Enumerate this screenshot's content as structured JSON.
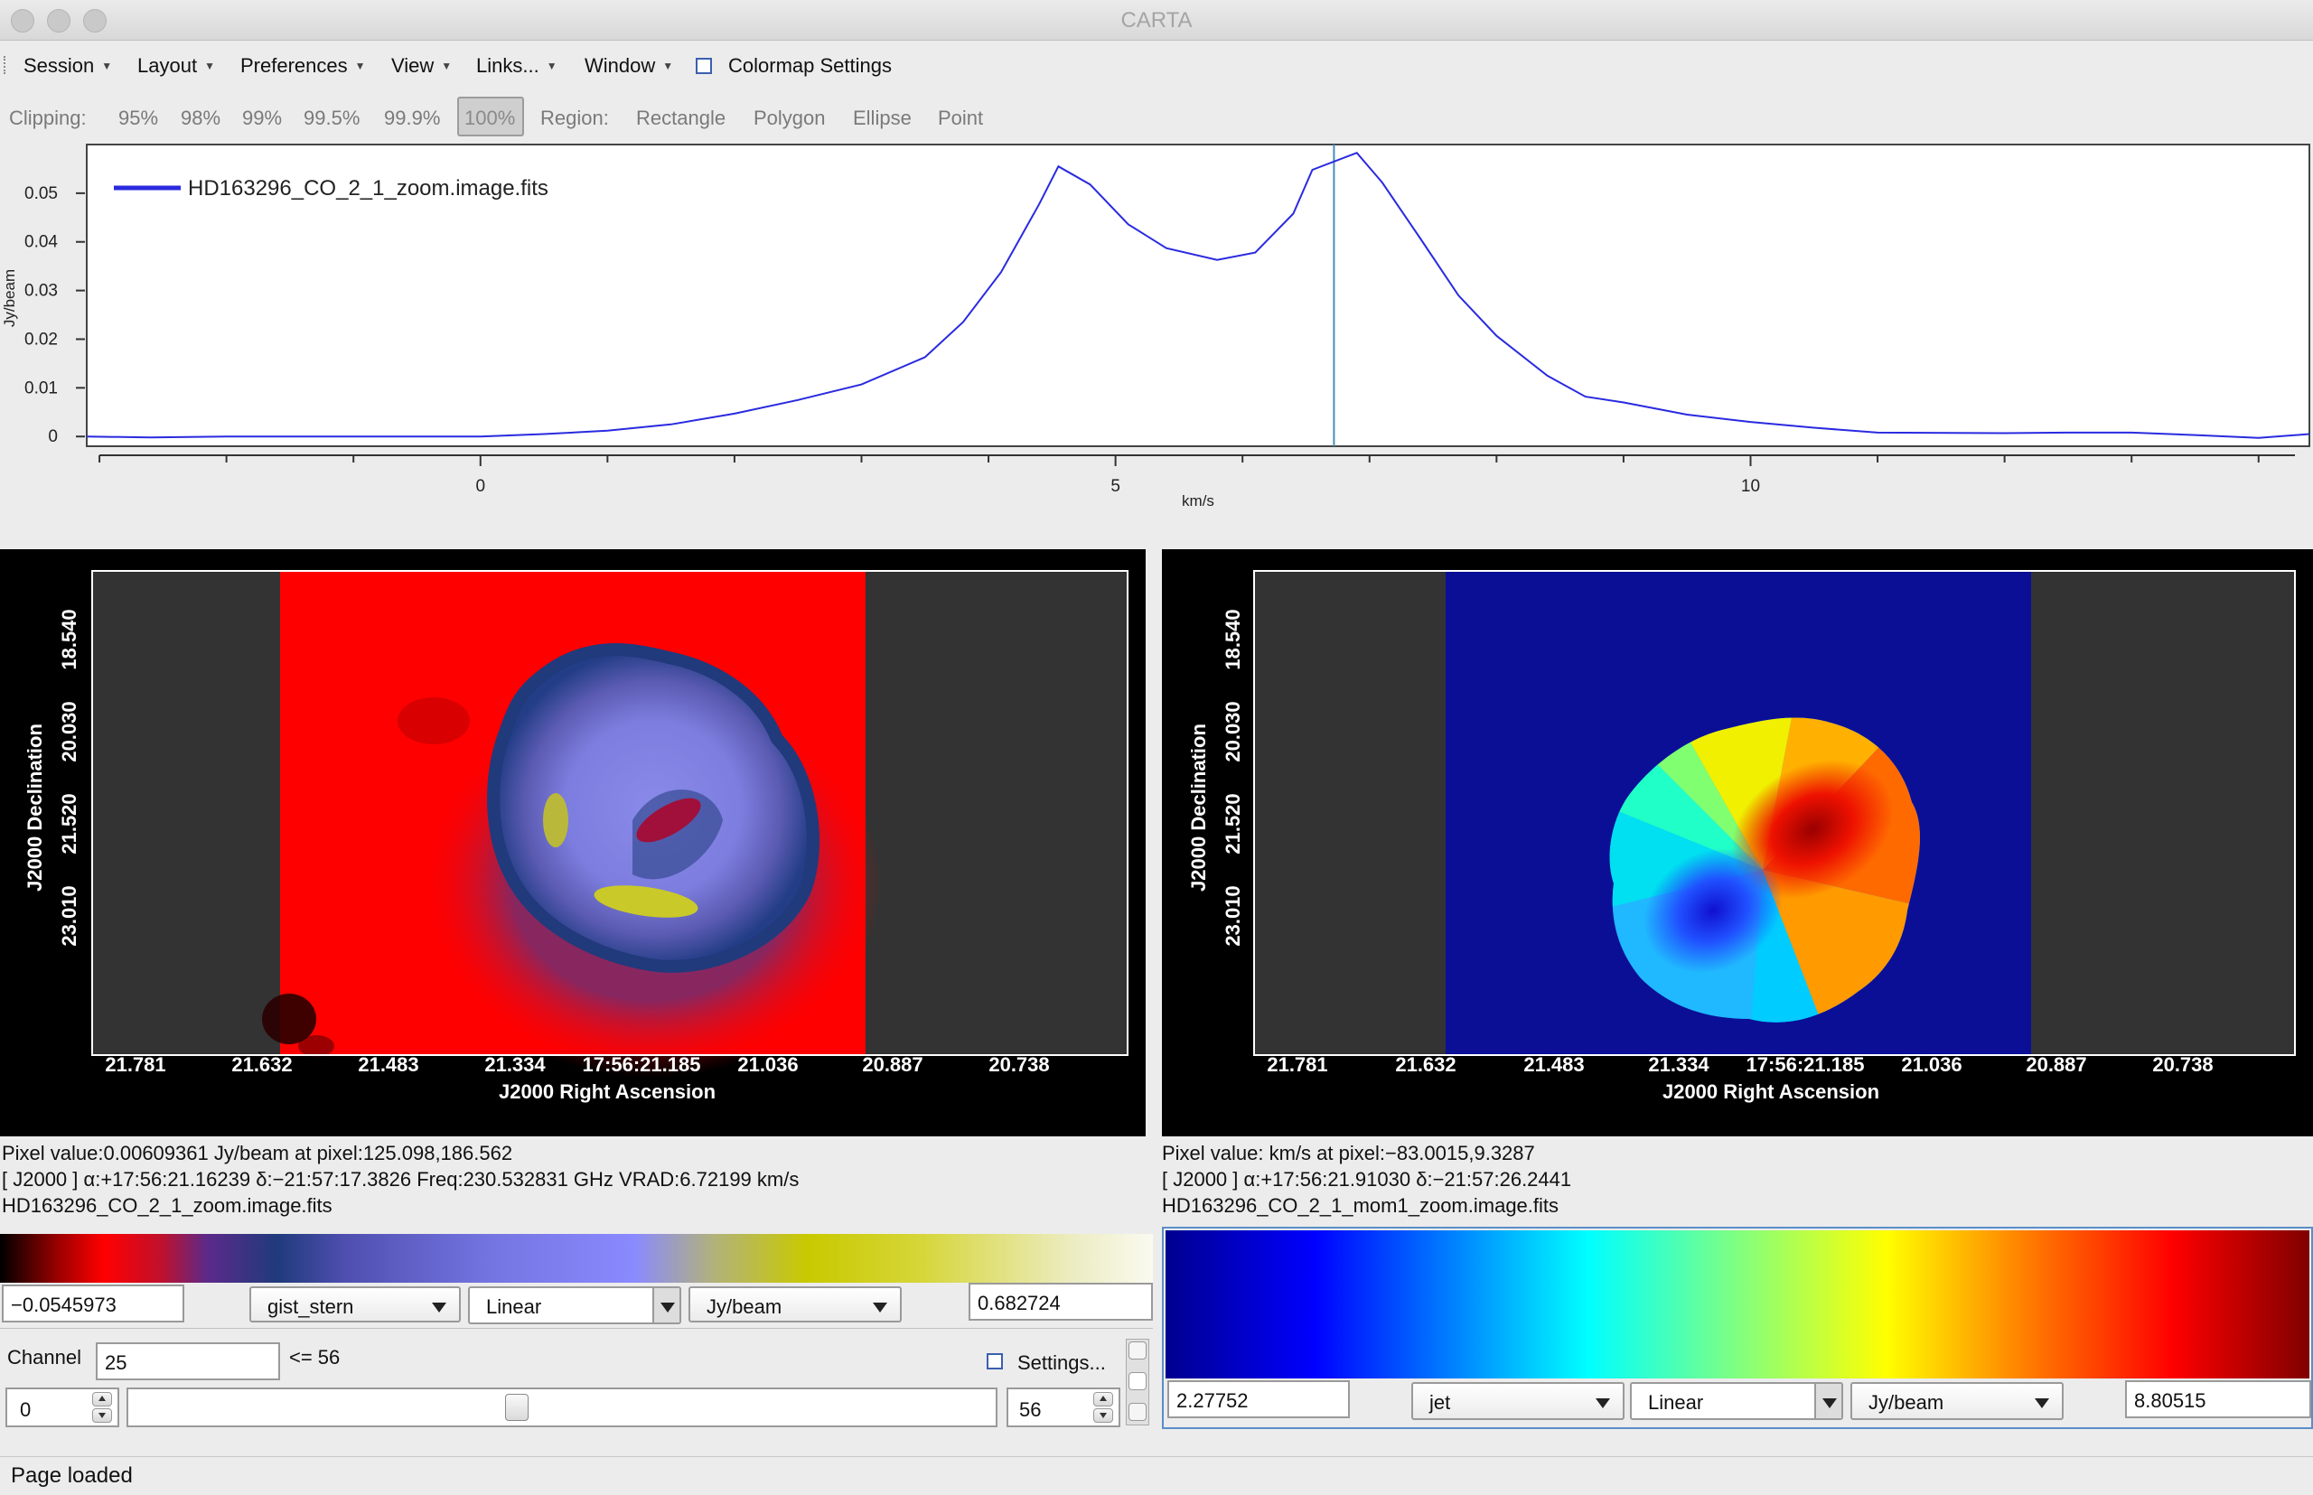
{
  "window": {
    "title": "CARTA"
  },
  "menu": {
    "items": [
      {
        "label": "Session"
      },
      {
        "label": "Layout"
      },
      {
        "label": "Preferences"
      },
      {
        "label": "View"
      },
      {
        "label": "Links..."
      },
      {
        "label": "Window"
      }
    ],
    "colormap_settings_label": "Colormap Settings"
  },
  "toolbar": {
    "clipping_label": "Clipping:",
    "clip_options": [
      "95%",
      "98%",
      "99%",
      "99.5%",
      "99.9%",
      "100%"
    ],
    "clip_selected": "100%",
    "region_label": "Region:",
    "region_options": [
      "Rectangle",
      "Polygon",
      "Ellipse",
      "Point"
    ]
  },
  "chart_data": {
    "type": "line",
    "title": "",
    "xlabel": "km/s",
    "ylabel": "Jy/beam",
    "xlim": [
      -3.1,
      14.4
    ],
    "ylim": [
      -0.002,
      0.06
    ],
    "x_ticks": [
      0,
      5,
      10
    ],
    "y_ticks": [
      0,
      0.01,
      0.02,
      0.03,
      0.04,
      0.05
    ],
    "y_tick_labels": [
      "0",
      "0.01",
      "0.02",
      "0.03",
      "0.04",
      "0.05"
    ],
    "cursor_x": 6.72,
    "legend": "top-left",
    "grid": false,
    "series": [
      {
        "name": "HD163296_CO_2_1_zoom.image.fits",
        "color": "#2a2ae0",
        "x": [
          -3.1,
          -2.6,
          -2.0,
          -1.0,
          0.0,
          0.5,
          1.0,
          1.5,
          2.0,
          2.5,
          3.0,
          3.5,
          3.8,
          4.1,
          4.4,
          4.55,
          4.8,
          5.1,
          5.4,
          5.8,
          6.1,
          6.4,
          6.55,
          6.9,
          7.1,
          7.4,
          7.7,
          8.0,
          8.4,
          8.7,
          9.0,
          9.5,
          10.0,
          10.5,
          11.0,
          12.0,
          12.5,
          13.0,
          13.5,
          14.0,
          14.4
        ],
        "y": [
          0.0,
          -0.0002,
          0.0,
          0.0,
          0.0,
          0.0005,
          0.0012,
          0.0025,
          0.0047,
          0.0075,
          0.0107,
          0.0163,
          0.0235,
          0.0338,
          0.0478,
          0.0555,
          0.0518,
          0.0436,
          0.0387,
          0.0363,
          0.0378,
          0.0458,
          0.0548,
          0.0583,
          0.0522,
          0.0407,
          0.029,
          0.0207,
          0.0125,
          0.0082,
          0.007,
          0.0045,
          0.003,
          0.0018,
          0.0008,
          0.0007,
          0.0008,
          0.0008,
          0.0003,
          -0.0003,
          0.0005
        ]
      }
    ]
  },
  "left_panel": {
    "xlabel": "J2000 Right Ascension",
    "ylabel": "J2000 Declination",
    "x_ticks": [
      "21.781",
      "21.632",
      "21.483",
      "21.334",
      "17:56:21.185",
      "21.036",
      "20.887",
      "20.738"
    ],
    "y_ticks": [
      "18.540",
      "20.030",
      "21.520",
      "23.010"
    ],
    "info_line1": "Pixel value:0.00609361 Jy/beam at pixel:125.098,186.562",
    "info_line2": "[ J2000 ] α:+17:56:21.16239 δ:−21:57:17.3826 Freq:230.532831 GHz VRAD:6.72199 km/s",
    "info_line3": "HD163296_CO_2_1_zoom.image.fits",
    "colormap": {
      "min": "−0.0545973",
      "max": "0.682724",
      "name": "gist_stern",
      "scale": "Linear",
      "unit": "Jy/beam"
    }
  },
  "right_panel": {
    "xlabel": "J2000 Right Ascension",
    "ylabel": "J2000 Declination",
    "x_ticks": [
      "21.781",
      "21.632",
      "21.483",
      "21.334",
      "17:56:21.185",
      "21.036",
      "20.887",
      "20.738"
    ],
    "y_ticks": [
      "18.540",
      "20.030",
      "21.520",
      "23.010"
    ],
    "info_line1": "Pixel value: km/s at pixel:−83.0015,9.3287",
    "info_line2": "[ J2000 ] α:+17:56:21.91030 δ:−21:57:26.2441",
    "info_line3": "HD163296_CO_2_1_mom1_zoom.image.fits",
    "colormap": {
      "min": "2.27752",
      "max": "8.80515",
      "name": "jet",
      "scale": "Linear",
      "unit": "Jy/beam"
    }
  },
  "channel": {
    "label": "Channel",
    "value": "25",
    "max_label": "<= 56",
    "settings_label": "Settings...",
    "min_spin": "0",
    "max_spin": "56",
    "slider_fraction": 0.446
  },
  "status": {
    "text": "Page loaded"
  }
}
